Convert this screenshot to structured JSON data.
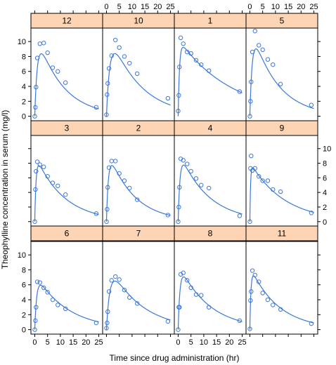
{
  "chart_data": {
    "type": "scatter",
    "xlabel": "Time since drug administration (hr)",
    "ylabel": "Theophylline concentration in serum (mg/l)",
    "xlim": [
      -1.5,
      26.5
    ],
    "ylim": [
      -0.6,
      11.8
    ],
    "x_ticks": [
      0,
      5,
      10,
      15,
      20,
      25
    ],
    "y_ticks": [
      0,
      2,
      4,
      6,
      8,
      10
    ],
    "layout": "trellis 4 columns x 3 rows",
    "colors": {
      "strip_fill": "#fdd5b4",
      "point": "#3c78d8",
      "line": "#3c78d8",
      "frame": "#000000"
    },
    "panels": [
      {
        "subject": "12",
        "x": [
          0,
          0.25,
          0.5,
          1,
          2,
          3.5,
          5,
          7,
          9,
          12,
          24
        ],
        "y": [
          0,
          1.2,
          3.9,
          7.8,
          9.7,
          9.8,
          8.5,
          6.5,
          6.0,
          4.5,
          1.2
        ],
        "fit": {
          "ka": 1.0,
          "ke": 0.1,
          "A": 12.0
        }
      },
      {
        "subject": "10",
        "x": [
          0,
          0.25,
          0.5,
          1,
          2,
          3.5,
          5,
          7,
          9,
          12,
          24
        ],
        "y": [
          0.2,
          2.9,
          4.4,
          6.4,
          8.1,
          10.2,
          9.2,
          8.0,
          7.1,
          5.7,
          2.4
        ],
        "fit": {
          "ka": 0.75,
          "ke": 0.085,
          "A": 12.5
        }
      },
      {
        "subject": "1",
        "x": [
          0,
          0.25,
          0.5,
          1,
          2,
          3.5,
          5,
          7,
          9,
          12,
          24
        ],
        "y": [
          0.7,
          2.8,
          6.6,
          10.5,
          9.7,
          8.6,
          8.4,
          7.5,
          6.9,
          6.1,
          3.3
        ],
        "fit": {
          "ka": 1.9,
          "ke": 0.048,
          "A": 10.4
        }
      },
      {
        "subject": "5",
        "x": [
          0,
          0.25,
          0.5,
          1,
          2,
          3.5,
          5,
          7,
          9,
          12,
          24
        ],
        "y": [
          0,
          2.0,
          4.6,
          8.6,
          11.4,
          9.5,
          8.9,
          7.6,
          6.9,
          4.3,
          1.5
        ],
        "fit": {
          "ka": 1.1,
          "ke": 0.1,
          "A": 12.6
        }
      },
      {
        "subject": "3",
        "x": [
          0,
          0.25,
          0.5,
          1,
          2,
          3.5,
          5,
          7,
          9,
          12,
          24
        ],
        "y": [
          0,
          4.4,
          6.9,
          8.2,
          7.8,
          7.5,
          6.2,
          5.3,
          4.9,
          3.7,
          1.1
        ],
        "fit": {
          "ka": 2.0,
          "ke": 0.09,
          "A": 9.3
        }
      },
      {
        "subject": "2",
        "x": [
          0,
          0.25,
          0.5,
          1,
          2,
          3.5,
          5,
          7,
          9,
          12,
          24
        ],
        "y": [
          0,
          1.7,
          4.7,
          7.4,
          8.3,
          8.3,
          6.6,
          5.6,
          4.6,
          3.0,
          0.9
        ],
        "fit": {
          "ka": 1.3,
          "ke": 0.1,
          "A": 10.3
        }
      },
      {
        "subject": "4",
        "x": [
          0,
          0.25,
          0.5,
          1,
          2,
          3.5,
          5,
          7,
          9,
          12,
          24
        ],
        "y": [
          0,
          2.0,
          4.7,
          8.6,
          8.4,
          7.9,
          6.9,
          5.9,
          5.0,
          4.6,
          0.8
        ],
        "fit": {
          "ka": 1.4,
          "ke": 0.09,
          "A": 10.0
        }
      },
      {
        "subject": "9",
        "x": [
          0,
          0.25,
          0.5,
          1,
          2,
          3.5,
          5,
          7,
          9,
          12,
          24
        ],
        "y": [
          0,
          7.3,
          9.0,
          7.0,
          7.3,
          6.2,
          5.6,
          5.6,
          4.4,
          4.1,
          1.2
        ],
        "fit": {
          "ka": 3.5,
          "ke": 0.075,
          "A": 8.2
        }
      },
      {
        "subject": "6",
        "x": [
          0,
          0.25,
          0.5,
          1,
          2,
          3.5,
          5,
          7,
          9,
          12,
          24
        ],
        "y": [
          0,
          1.2,
          3.0,
          6.4,
          6.3,
          5.6,
          5.0,
          4.0,
          3.3,
          2.8,
          0.9
        ],
        "fit": {
          "ka": 1.3,
          "ke": 0.08,
          "A": 7.6
        }
      },
      {
        "subject": "7",
        "x": [
          0,
          0.25,
          0.5,
          1,
          2,
          3.5,
          5,
          7,
          9,
          12,
          24
        ],
        "y": [
          0.2,
          0.9,
          2.4,
          5.1,
          6.6,
          7.1,
          6.7,
          5.3,
          4.3,
          3.5,
          1.1
        ],
        "fit": {
          "ka": 0.75,
          "ke": 0.08,
          "A": 9.5
        }
      },
      {
        "subject": "8",
        "x": [
          0,
          0.25,
          0.5,
          1,
          2,
          3.5,
          5,
          7,
          9,
          12,
          24
        ],
        "y": [
          0,
          3.0,
          3.0,
          7.4,
          7.6,
          6.6,
          5.6,
          4.7,
          4.6,
          3.0,
          1.2
        ],
        "fit": {
          "ka": 1.4,
          "ke": 0.085,
          "A": 9.0
        }
      },
      {
        "subject": "11",
        "x": [
          0,
          0.25,
          0.5,
          1,
          2,
          3.5,
          5,
          7,
          9,
          12,
          24
        ],
        "y": [
          0.1,
          3.9,
          5.1,
          7.9,
          7.3,
          6.4,
          4.9,
          4.0,
          3.3,
          2.7,
          0.8
        ],
        "fit": {
          "ka": 2.4,
          "ke": 0.09,
          "A": 8.5
        }
      }
    ]
  }
}
